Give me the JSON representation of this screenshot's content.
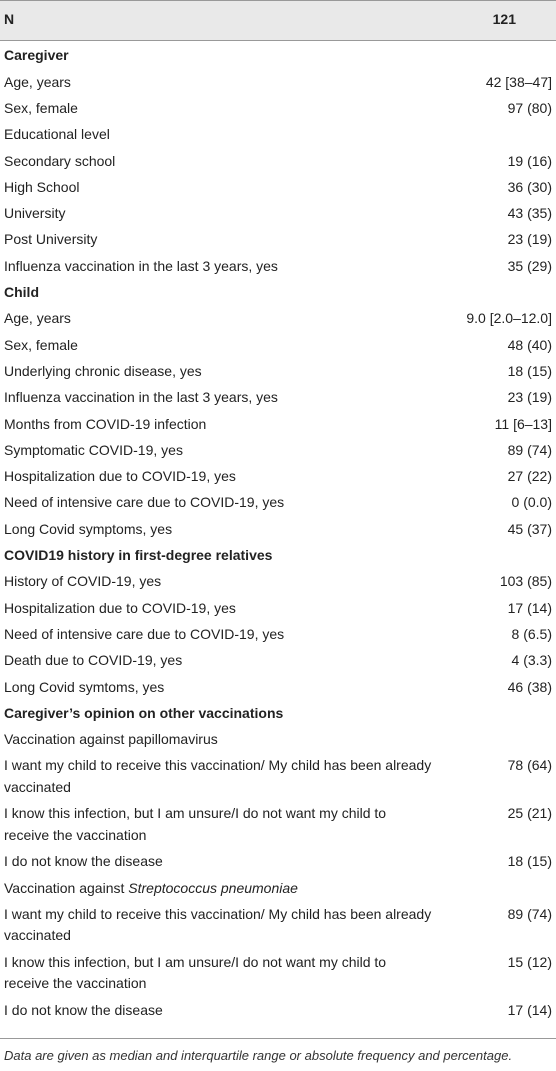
{
  "header": {
    "n_label": "N",
    "n_value": "121"
  },
  "rows": [
    {
      "label": "Caregiver",
      "value": "",
      "bold": true
    },
    {
      "label": "Age, years",
      "value": "42 [38–47]"
    },
    {
      "label": "Sex, female",
      "value": "97 (80)"
    },
    {
      "label": "Educational level",
      "value": ""
    },
    {
      "label": "Secondary school",
      "value": "19 (16)"
    },
    {
      "label": "High School",
      "value": "36 (30)"
    },
    {
      "label": "University",
      "value": "43 (35)"
    },
    {
      "label": "Post University",
      "value": "23 (19)"
    },
    {
      "label": "Influenza vaccination in the last 3 years, yes",
      "value": "35 (29)"
    },
    {
      "label": "Child",
      "value": "",
      "bold": true
    },
    {
      "label": "Age, years",
      "value": "9.0 [2.0–12.0]"
    },
    {
      "label": "Sex, female",
      "value": "48 (40)"
    },
    {
      "label": "Underlying chronic disease, yes",
      "value": "18 (15)"
    },
    {
      "label": "Influenza vaccination in the last 3 years, yes",
      "value": "23 (19)"
    },
    {
      "label": "Months from COVID-19 infection",
      "value": "11 [6–13]"
    },
    {
      "label": "Symptomatic COVID-19, yes",
      "value": "89 (74)"
    },
    {
      "label": "Hospitalization due to COVID-19, yes",
      "value": "27 (22)"
    },
    {
      "label": "Need of intensive care due to COVID-19, yes",
      "value": "0 (0.0)"
    },
    {
      "label": "Long Covid symptoms, yes",
      "value": "45 (37)"
    },
    {
      "label": "COVID19 history in first-degree relatives",
      "value": "",
      "bold": true
    },
    {
      "label": "History of COVID-19, yes",
      "value": "103 (85)"
    },
    {
      "label": "Hospitalization due to COVID-19, yes",
      "value": "17 (14)"
    },
    {
      "label": "Need of intensive care due to COVID-19, yes",
      "value": "8 (6.5)"
    },
    {
      "label": "Death due to COVID-19, yes",
      "value": "4 (3.3)"
    },
    {
      "label": "Long Covid symtoms, yes",
      "value": "46 (38)"
    },
    {
      "label": "Caregiver’s opinion on other vaccinations",
      "value": "",
      "bold": true
    },
    {
      "label": "Vaccination against papillomavirus",
      "value": ""
    },
    {
      "label": "I want my child to receive this vaccination/ My child has been already vaccinated",
      "value": "78 (64)",
      "two": true
    },
    {
      "label": "I know this infection, but I am unsure/I do not want my child to receive the vaccination",
      "value": "25 (21)",
      "two": true
    },
    {
      "label": "I do not know the disease",
      "value": "18 (15)"
    },
    {
      "label_prefix": "Vaccination against ",
      "label_italic": "Streptococcus pneumoniae",
      "value": ""
    },
    {
      "label": "I want my child to receive this vaccination/ My child has been already vaccinated",
      "value": "89 (74)",
      "two": true
    },
    {
      "label": "I know this infection, but I am unsure/I do not want my child to receive the vaccination",
      "value": "15 (12)",
      "two": true
    },
    {
      "label": "I do not know the disease",
      "value": "17 (14)"
    }
  ],
  "footnote": "Data are given as median and interquartile range or absolute frequency and percentage."
}
